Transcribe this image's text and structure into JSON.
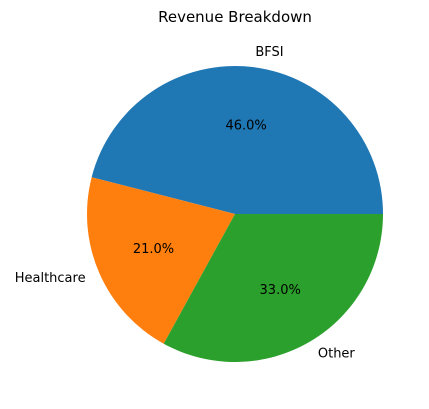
{
  "chart_data": {
    "type": "pie",
    "title": "Revenue Breakdown",
    "slices": [
      {
        "label": "BFSI",
        "value": 46.0,
        "percent_label": "46.0%",
        "color": "#1f77b4"
      },
      {
        "label": "Healthcare",
        "value": 21.0,
        "percent_label": "21.0%",
        "color": "#ff7f0e"
      },
      {
        "label": "Other",
        "value": 33.0,
        "percent_label": "33.0%",
        "color": "#2ca02c"
      }
    ],
    "start_angle_deg": 0,
    "direction": "counterclockwise",
    "legend": "none"
  }
}
